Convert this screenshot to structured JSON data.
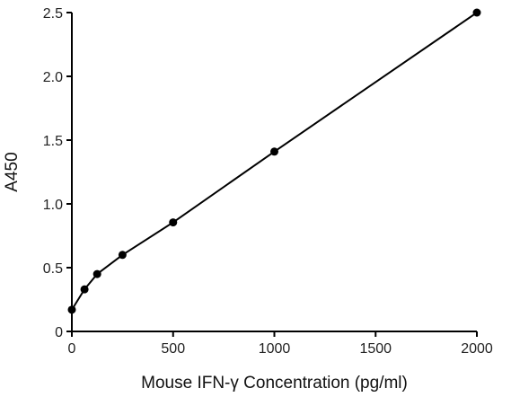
{
  "chart_data": {
    "type": "line",
    "xlabel": "Mouse IFN-γ Concentration (pg/ml)",
    "ylabel": "A450",
    "xlim": [
      0,
      2000
    ],
    "ylim": [
      0,
      2.5
    ],
    "x_ticks": [
      0,
      500,
      1000,
      1500,
      2000
    ],
    "y_ticks": [
      0,
      0.5,
      1.0,
      1.5,
      2.0,
      2.5
    ],
    "x_tick_labels": [
      "0",
      "500",
      "1000",
      "1500",
      "2000"
    ],
    "y_tick_labels": [
      "0",
      "0.5",
      "1.0",
      "1.5",
      "2.0",
      "2.5"
    ],
    "grid": false,
    "series": [
      {
        "x": [
          0,
          62.5,
          125,
          250,
          500,
          1000,
          2000
        ],
        "y": [
          0.17,
          0.33,
          0.45,
          0.6,
          0.855,
          1.41,
          2.5
        ]
      }
    ],
    "colors": {
      "line": "#000000",
      "marker": "#000000",
      "axis": "#000000"
    }
  }
}
